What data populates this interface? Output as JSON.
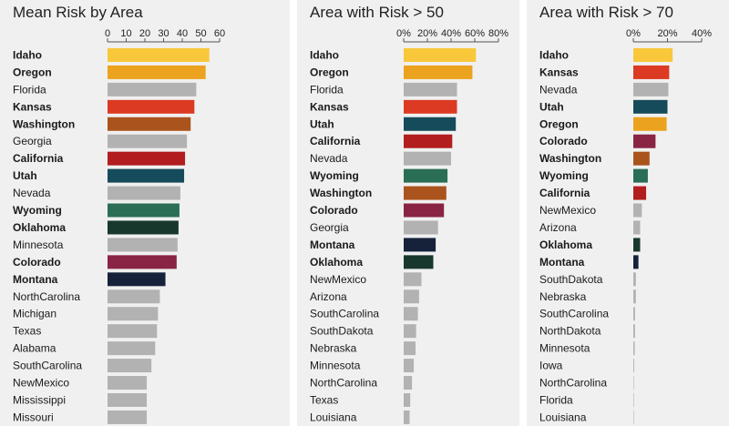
{
  "chart_data": [
    {
      "type": "bar",
      "orientation": "horizontal",
      "title": "Mean Risk by Area",
      "x_ticks": [
        "0",
        "10",
        "20",
        "30",
        "40",
        "50",
        "60"
      ],
      "xlim": [
        0,
        60
      ],
      "grid": false,
      "bars": [
        {
          "label": "Idaho",
          "value": 54.5,
          "highlight": true,
          "color": "#f9c73a"
        },
        {
          "label": "Oregon",
          "value": 52.5,
          "highlight": true,
          "color": "#eba21f"
        },
        {
          "label": "Florida",
          "value": 47.5,
          "highlight": false,
          "color": "#b2b2b2"
        },
        {
          "label": "Kansas",
          "value": 46.5,
          "highlight": true,
          "color": "#dc3a22"
        },
        {
          "label": "Washington",
          "value": 44.5,
          "highlight": true,
          "color": "#aa531c"
        },
        {
          "label": "Georgia",
          "value": 42.5,
          "highlight": false,
          "color": "#b2b2b2"
        },
        {
          "label": "California",
          "value": 41.5,
          "highlight": true,
          "color": "#b21d1f"
        },
        {
          "label": "Utah",
          "value": 41.0,
          "highlight": true,
          "color": "#154b5a"
        },
        {
          "label": "Nevada",
          "value": 39.0,
          "highlight": false,
          "color": "#b2b2b2"
        },
        {
          "label": "Wyoming",
          "value": 38.5,
          "highlight": true,
          "color": "#2a6e56"
        },
        {
          "label": "Oklahoma",
          "value": 38.0,
          "highlight": true,
          "color": "#19382d"
        },
        {
          "label": "Minnesota",
          "value": 37.5,
          "highlight": false,
          "color": "#b2b2b2"
        },
        {
          "label": "Colorado",
          "value": 37.0,
          "highlight": true,
          "color": "#8a2444"
        },
        {
          "label": "Montana",
          "value": 31.0,
          "highlight": true,
          "color": "#15223a"
        },
        {
          "label": "NorthCarolina",
          "value": 28.0,
          "highlight": false,
          "color": "#b2b2b2"
        },
        {
          "label": "Michigan",
          "value": 27.0,
          "highlight": false,
          "color": "#b2b2b2"
        },
        {
          "label": "Texas",
          "value": 26.5,
          "highlight": false,
          "color": "#b2b2b2"
        },
        {
          "label": "Alabama",
          "value": 25.5,
          "highlight": false,
          "color": "#b2b2b2"
        },
        {
          "label": "SouthCarolina",
          "value": 23.5,
          "highlight": false,
          "color": "#b2b2b2"
        },
        {
          "label": "NewMexico",
          "value": 21.0,
          "highlight": false,
          "color": "#b2b2b2"
        },
        {
          "label": "Mississippi",
          "value": 21.0,
          "highlight": false,
          "color": "#b2b2b2"
        },
        {
          "label": "Missouri",
          "value": 21.0,
          "highlight": false,
          "color": "#b2b2b2"
        }
      ]
    },
    {
      "type": "bar",
      "orientation": "horizontal",
      "title": "Area with Risk > 50",
      "x_ticks": [
        "0%",
        "20%",
        "40%",
        "60%",
        "80%"
      ],
      "xlim": [
        0,
        80
      ],
      "grid": false,
      "bars": [
        {
          "label": "Idaho",
          "value": 61,
          "highlight": true,
          "color": "#f9c73a"
        },
        {
          "label": "Oregon",
          "value": 58,
          "highlight": true,
          "color": "#eba21f"
        },
        {
          "label": "Florida",
          "value": 45,
          "highlight": false,
          "color": "#b2b2b2"
        },
        {
          "label": "Kansas",
          "value": 45,
          "highlight": true,
          "color": "#dc3a22"
        },
        {
          "label": "Utah",
          "value": 44,
          "highlight": true,
          "color": "#154b5a"
        },
        {
          "label": "California",
          "value": 41,
          "highlight": true,
          "color": "#b21d1f"
        },
        {
          "label": "Nevada",
          "value": 40,
          "highlight": false,
          "color": "#b2b2b2"
        },
        {
          "label": "Wyoming",
          "value": 37,
          "highlight": true,
          "color": "#2a6e56"
        },
        {
          "label": "Washington",
          "value": 36,
          "highlight": true,
          "color": "#aa531c"
        },
        {
          "label": "Colorado",
          "value": 34,
          "highlight": true,
          "color": "#8a2444"
        },
        {
          "label": "Georgia",
          "value": 29,
          "highlight": false,
          "color": "#b2b2b2"
        },
        {
          "label": "Montana",
          "value": 27,
          "highlight": true,
          "color": "#15223a"
        },
        {
          "label": "Oklahoma",
          "value": 25,
          "highlight": true,
          "color": "#19382d"
        },
        {
          "label": "NewMexico",
          "value": 15,
          "highlight": false,
          "color": "#b2b2b2"
        },
        {
          "label": "Arizona",
          "value": 13,
          "highlight": false,
          "color": "#b2b2b2"
        },
        {
          "label": "SouthCarolina",
          "value": 12,
          "highlight": false,
          "color": "#b2b2b2"
        },
        {
          "label": "SouthDakota",
          "value": 10.5,
          "highlight": false,
          "color": "#b2b2b2"
        },
        {
          "label": "Nebraska",
          "value": 10,
          "highlight": false,
          "color": "#b2b2b2"
        },
        {
          "label": "Minnesota",
          "value": 8.5,
          "highlight": false,
          "color": "#b2b2b2"
        },
        {
          "label": "NorthCarolina",
          "value": 7,
          "highlight": false,
          "color": "#b2b2b2"
        },
        {
          "label": "Texas",
          "value": 5.5,
          "highlight": false,
          "color": "#b2b2b2"
        },
        {
          "label": "Louisiana",
          "value": 5,
          "highlight": false,
          "color": "#b2b2b2"
        }
      ]
    },
    {
      "type": "bar",
      "orientation": "horizontal",
      "title": "Area with Risk > 70",
      "x_ticks": [
        "0%",
        "20%",
        "40%"
      ],
      "xlim": [
        0,
        40
      ],
      "grid": false,
      "bars": [
        {
          "label": "Idaho",
          "value": 23,
          "highlight": true,
          "color": "#f9c73a"
        },
        {
          "label": "Kansas",
          "value": 21,
          "highlight": true,
          "color": "#dc3a22"
        },
        {
          "label": "Nevada",
          "value": 20.5,
          "highlight": false,
          "color": "#b2b2b2"
        },
        {
          "label": "Utah",
          "value": 20,
          "highlight": true,
          "color": "#154b5a"
        },
        {
          "label": "Oregon",
          "value": 19.5,
          "highlight": true,
          "color": "#eba21f"
        },
        {
          "label": "Colorado",
          "value": 13,
          "highlight": true,
          "color": "#8a2444"
        },
        {
          "label": "Washington",
          "value": 9.5,
          "highlight": true,
          "color": "#aa531c"
        },
        {
          "label": "Wyoming",
          "value": 8.5,
          "highlight": true,
          "color": "#2a6e56"
        },
        {
          "label": "California",
          "value": 7.5,
          "highlight": true,
          "color": "#b21d1f"
        },
        {
          "label": "NewMexico",
          "value": 5,
          "highlight": false,
          "color": "#b2b2b2"
        },
        {
          "label": "Arizona",
          "value": 4,
          "highlight": false,
          "color": "#b2b2b2"
        },
        {
          "label": "Oklahoma",
          "value": 4,
          "highlight": true,
          "color": "#19382d"
        },
        {
          "label": "Montana",
          "value": 3,
          "highlight": true,
          "color": "#15223a"
        },
        {
          "label": "SouthDakota",
          "value": 1.5,
          "highlight": false,
          "color": "#b2b2b2"
        },
        {
          "label": "Nebraska",
          "value": 1.5,
          "highlight": false,
          "color": "#b2b2b2"
        },
        {
          "label": "SouthCarolina",
          "value": 1,
          "highlight": false,
          "color": "#b2b2b2"
        },
        {
          "label": "NorthDakota",
          "value": 1,
          "highlight": false,
          "color": "#b2b2b2"
        },
        {
          "label": "Minnesota",
          "value": 0.8,
          "highlight": false,
          "color": "#b2b2b2"
        },
        {
          "label": "Iowa",
          "value": 0.5,
          "highlight": false,
          "color": "#b2b2b2"
        },
        {
          "label": "NorthCarolina",
          "value": 0.3,
          "highlight": false,
          "color": "#b2b2b2"
        },
        {
          "label": "Florida",
          "value": 0.2,
          "highlight": false,
          "color": "#b2b2b2"
        },
        {
          "label": "Louisiana",
          "value": 0.1,
          "highlight": false,
          "color": "#b2b2b2"
        }
      ]
    }
  ]
}
